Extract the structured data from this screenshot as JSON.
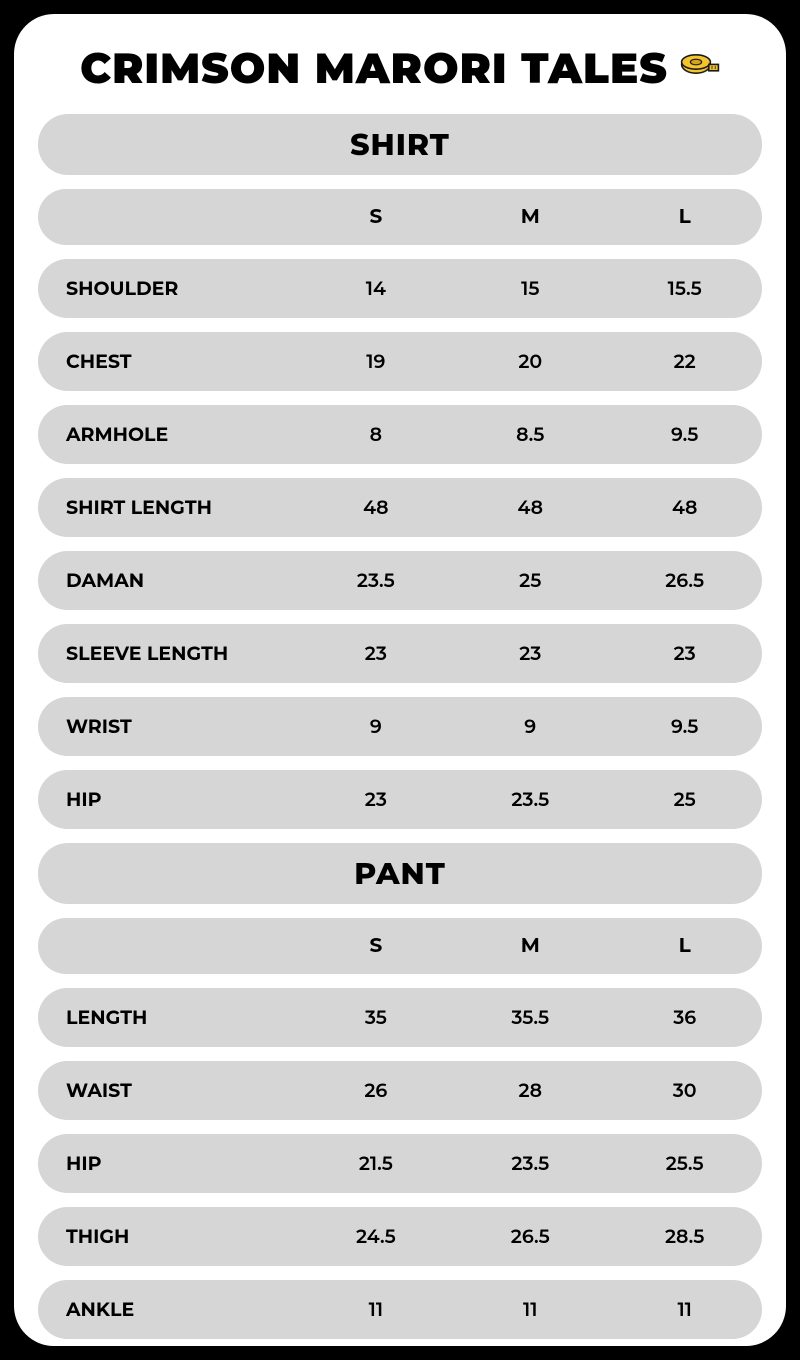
{
  "title": "CRIMSON MARORI TALES",
  "icon_colors": {
    "body": "#f4c430",
    "stroke": "#1a1a1a",
    "detail": "#d4a01e"
  },
  "row_bg": "#d6d6d6",
  "card_bg": "#ffffff",
  "page_bg": "#000000",
  "title_fontsize": 42,
  "section_title_fontsize": 30,
  "cell_fontsize": 19,
  "header_fontsize": 20,
  "sections": [
    {
      "title": "SHIRT",
      "sizes": [
        "S",
        "M",
        "L"
      ],
      "rows": [
        {
          "label": "SHOULDER",
          "values": [
            "14",
            "15",
            "15.5"
          ]
        },
        {
          "label": "CHEST",
          "values": [
            "19",
            "20",
            "22"
          ]
        },
        {
          "label": "ARMHOLE",
          "values": [
            "8",
            "8.5",
            "9.5"
          ]
        },
        {
          "label": "SHIRT LENGTH",
          "values": [
            "48",
            "48",
            "48"
          ]
        },
        {
          "label": "DAMAN",
          "values": [
            "23.5",
            "25",
            "26.5"
          ]
        },
        {
          "label": "SLEEVE LENGTH",
          "values": [
            "23",
            "23",
            "23"
          ]
        },
        {
          "label": "WRIST",
          "values": [
            "9",
            "9",
            "9.5"
          ]
        },
        {
          "label": "HIP",
          "values": [
            "23",
            "23.5",
            "25"
          ]
        }
      ]
    },
    {
      "title": "PANT",
      "sizes": [
        "S",
        "M",
        "L"
      ],
      "rows": [
        {
          "label": "LENGTH",
          "values": [
            "35",
            "35.5",
            "36"
          ]
        },
        {
          "label": "WAIST",
          "values": [
            "26",
            "28",
            "30"
          ]
        },
        {
          "label": "HIP",
          "values": [
            "21.5",
            "23.5",
            "25.5"
          ]
        },
        {
          "label": "THIGH",
          "values": [
            "24.5",
            "26.5",
            "28.5"
          ]
        },
        {
          "label": "ANKLE",
          "values": [
            "11",
            "11",
            "11"
          ]
        }
      ]
    }
  ]
}
